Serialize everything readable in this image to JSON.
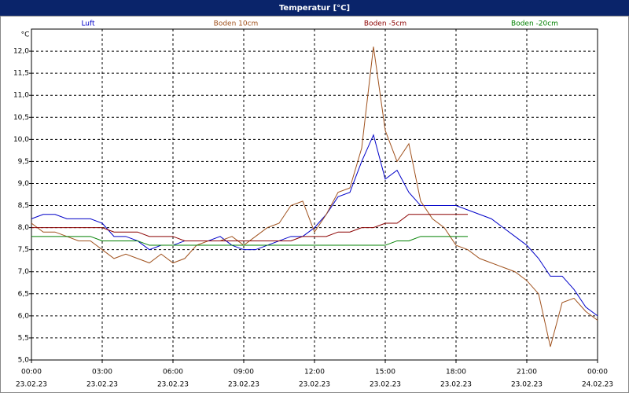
{
  "chart_data": {
    "type": "line",
    "title": "Temperatur [°C]",
    "y_unit": "°C",
    "x": [
      0,
      0.5,
      1,
      1.5,
      2,
      2.5,
      3,
      3.5,
      4,
      4.5,
      5,
      5.5,
      6,
      6.5,
      7,
      7.5,
      8,
      8.5,
      9,
      9.5,
      10,
      10.5,
      11,
      11.5,
      12,
      12.5,
      13,
      13.5,
      14,
      14.5,
      15,
      15.5,
      16,
      16.5,
      17,
      17.5,
      18,
      18.5,
      19,
      19.5,
      20,
      20.5,
      21,
      21.5,
      22,
      22.5,
      23,
      23.5,
      24
    ],
    "series": [
      {
        "name": "Luft",
        "color": "#0000c8",
        "values": [
          8.2,
          8.3,
          8.3,
          8.2,
          8.2,
          8.2,
          8.1,
          7.8,
          7.8,
          7.7,
          7.5,
          7.6,
          7.6,
          7.7,
          7.7,
          7.7,
          7.8,
          7.6,
          7.5,
          7.5,
          7.6,
          7.7,
          7.8,
          7.8,
          8.0,
          8.3,
          8.7,
          8.8,
          9.5,
          10.1,
          9.1,
          9.3,
          8.8,
          8.5,
          8.5,
          8.5,
          8.5,
          8.4,
          8.3,
          8.2,
          8.0,
          7.8,
          7.6,
          7.3,
          6.9,
          6.9,
          6.6,
          6.2,
          6.0
        ]
      },
      {
        "name": "Boden 10cm",
        "color": "#a0521e",
        "values": [
          8.1,
          7.9,
          7.9,
          7.8,
          7.7,
          7.7,
          7.5,
          7.3,
          7.4,
          7.3,
          7.2,
          7.4,
          7.2,
          7.3,
          7.6,
          7.7,
          7.7,
          7.8,
          7.6,
          7.8,
          8.0,
          8.1,
          8.5,
          8.6,
          7.9,
          8.3,
          8.8,
          8.9,
          9.8,
          12.1,
          10.2,
          9.5,
          9.9,
          8.6,
          8.2,
          8.0,
          7.6,
          7.5,
          7.3,
          7.2,
          7.1,
          7.0,
          6.8,
          6.5,
          5.3,
          6.3,
          6.4,
          6.1,
          5.9
        ]
      },
      {
        "name": "Boden -5cm",
        "color": "#8b0000",
        "values": [
          8.0,
          8.0,
          8.0,
          8.0,
          8.0,
          8.0,
          8.0,
          7.9,
          7.9,
          7.9,
          7.8,
          7.8,
          7.8,
          7.7,
          7.7,
          7.7,
          7.7,
          7.7,
          7.7,
          7.7,
          7.7,
          7.7,
          7.7,
          7.8,
          7.8,
          7.8,
          7.9,
          7.9,
          8.0,
          8.0,
          8.1,
          8.1,
          8.3,
          8.3,
          8.3,
          8.3,
          8.3,
          8.3,
          null,
          null,
          null,
          null,
          null,
          null,
          null,
          null,
          null,
          null,
          null
        ]
      },
      {
        "name": "Boden -20cm",
        "color": "#008000",
        "values": [
          7.8,
          7.8,
          7.8,
          7.8,
          7.8,
          7.8,
          7.7,
          7.7,
          7.7,
          7.7,
          7.6,
          7.6,
          7.6,
          7.6,
          7.6,
          7.6,
          7.6,
          7.6,
          7.6,
          7.6,
          7.6,
          7.6,
          7.6,
          7.6,
          7.6,
          7.6,
          7.6,
          7.6,
          7.6,
          7.6,
          7.6,
          7.7,
          7.7,
          7.8,
          7.8,
          7.8,
          7.8,
          7.8,
          null,
          null,
          null,
          null,
          null,
          null,
          null,
          null,
          null,
          null,
          null
        ]
      }
    ],
    "xlim": [
      0,
      24
    ],
    "xticks": [
      {
        "value": 0,
        "label": "00:00"
      },
      {
        "value": 3,
        "label": "03:00"
      },
      {
        "value": 6,
        "label": "06:00"
      },
      {
        "value": 9,
        "label": "09:00"
      },
      {
        "value": 12,
        "label": "12:00"
      },
      {
        "value": 15,
        "label": "15:00"
      },
      {
        "value": 18,
        "label": "18:00"
      },
      {
        "value": 21,
        "label": "21:00"
      },
      {
        "value": 24,
        "label": "00:00"
      }
    ],
    "xtick_dates": [
      "23.02.23",
      "23.02.23",
      "23.02.23",
      "23.02.23",
      "23.02.23",
      "23.02.23",
      "23.02.23",
      "23.02.23",
      "24.02.23"
    ],
    "ylim": [
      5,
      12.5
    ],
    "yticks": [
      {
        "value": 5,
        "label": "5,0"
      },
      {
        "value": 5.5,
        "label": "5,5"
      },
      {
        "value": 6,
        "label": "6,0"
      },
      {
        "value": 6.5,
        "label": "6,5"
      },
      {
        "value": 7,
        "label": "7,0"
      },
      {
        "value": 7.5,
        "label": "7,5"
      },
      {
        "value": 8,
        "label": "8,0"
      },
      {
        "value": 8.5,
        "label": "8,5"
      },
      {
        "value": 9,
        "label": "9,0"
      },
      {
        "value": 9.5,
        "label": "9,5"
      },
      {
        "value": 10,
        "label": "10,0"
      },
      {
        "value": 10.5,
        "label": "10,5"
      },
      {
        "value": 11,
        "label": "11,0"
      },
      {
        "value": 11.5,
        "label": "11,5"
      },
      {
        "value": 12,
        "label": "12,0"
      }
    ],
    "grid": true
  }
}
